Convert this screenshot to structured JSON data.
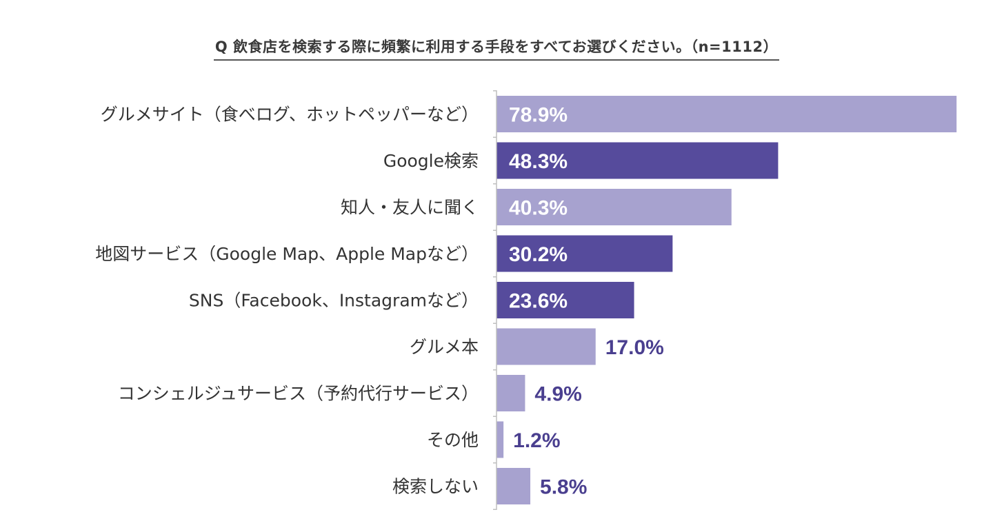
{
  "chart_data": {
    "type": "bar",
    "orientation": "horizontal",
    "title": "Q 飲食店を検索する際に頻繁に利用する手段をすべてお選びください。（n=1112）",
    "categories": [
      "グルメサイト（食べログ、ホットペッパーなど）",
      "Google検索",
      "知人・友人に聞く",
      "地図サービス（Google Map、Apple Mapなど）",
      "SNS（Facebook、Instagramなど）",
      "グルメ本",
      "コンシェルジュサービス（予約代行サービス）",
      "その他",
      "検索しない"
    ],
    "values": [
      78.9,
      48.3,
      40.3,
      30.2,
      23.6,
      17.0,
      4.9,
      1.2,
      5.8
    ],
    "value_labels": [
      "78.9%",
      "48.3%",
      "40.3%",
      "30.2%",
      "23.6%",
      "17.0%",
      "4.9%",
      "1.2%",
      "5.8%"
    ],
    "bar_colors": [
      "#a7a2cf",
      "#564b9c",
      "#a7a2cf",
      "#564b9c",
      "#564b9c",
      "#a7a2cf",
      "#a7a2cf",
      "#a7a2cf",
      "#a7a2cf"
    ],
    "xlim": [
      0,
      79
    ],
    "grid": false,
    "legend": "none"
  },
  "colors": {
    "dark": "#564b9c",
    "light": "#a7a2cf",
    "label_text": "#333333",
    "value_inside": "#ffffff",
    "value_outside": "#4a3f8f"
  }
}
